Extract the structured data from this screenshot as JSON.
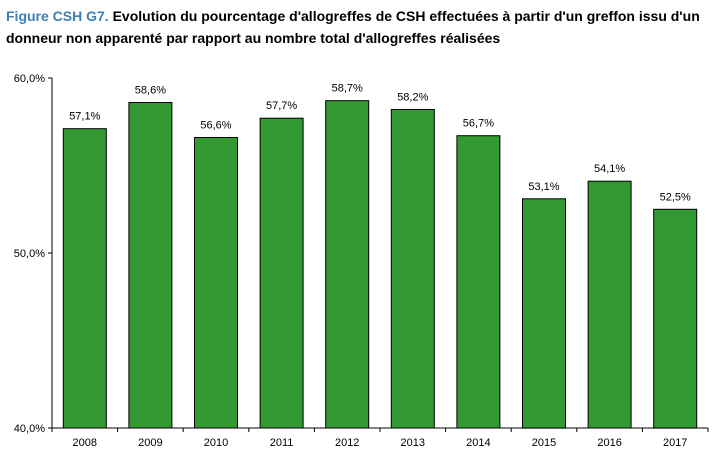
{
  "title": {
    "prefix": "Figure CSH G7.",
    "text": "Evolution du pourcentage d'allogreffes de CSH effectuées à partir d'un greffon issu d'un donneur non apparenté par rapport au nombre total d'allogreffes réalisées"
  },
  "chart_data": {
    "type": "bar",
    "title": "Figure CSH G7. Evolution du pourcentage d'allogreffes de CSH effectuées à partir d'un greffon issu d'un donneur non apparenté par rapport au nombre total d'allogreffes réalisées",
    "xlabel": "",
    "ylabel": "",
    "categories": [
      "2008",
      "2009",
      "2010",
      "2011",
      "2012",
      "2013",
      "2014",
      "2015",
      "2016",
      "2017"
    ],
    "values": [
      57.1,
      58.6,
      56.6,
      57.7,
      58.7,
      58.2,
      56.7,
      53.1,
      54.1,
      52.5
    ],
    "data_labels": [
      "57,1%",
      "58,6%",
      "56,6%",
      "57,7%",
      "58,7%",
      "58,2%",
      "56,7%",
      "53,1%",
      "54,1%",
      "52,5%"
    ],
    "ylim": [
      40,
      60
    ],
    "yticks": [
      40,
      50,
      60
    ],
    "ytick_labels": [
      "40,0%",
      "50,0%",
      "60,0%"
    ],
    "bar_color": "#339933",
    "grid": false,
    "legend": "none"
  }
}
